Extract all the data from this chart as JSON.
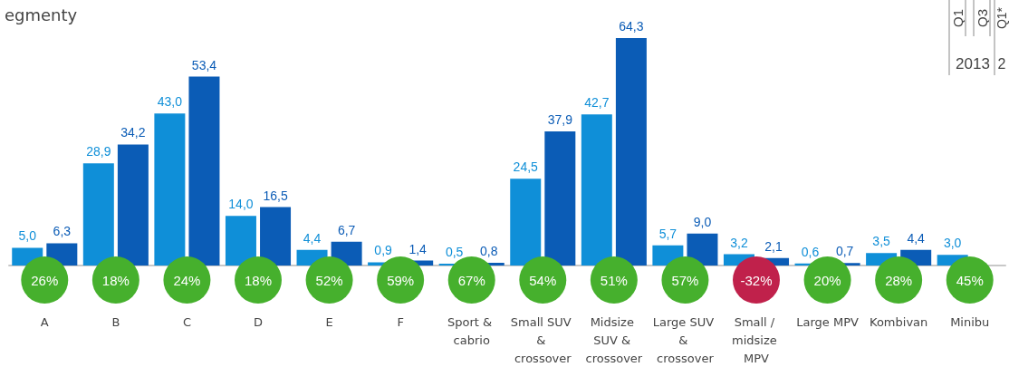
{
  "chart_data": {
    "type": "bar",
    "title": "egmenty",
    "categories": [
      "A",
      "B",
      "C",
      "D",
      "E",
      "F",
      "Sport & cabrio",
      "Small SUV & crossover",
      "Midsize SUV & crossover",
      "Large SUV & crossover",
      "Small / midsize MPV",
      "Large MPV",
      "Kombivan",
      "Minibu"
    ],
    "series": [
      {
        "color": "#0f8fd8",
        "values": [
          5.0,
          28.9,
          43.0,
          14.0,
          4.4,
          0.9,
          0.5,
          24.5,
          42.7,
          5.7,
          3.2,
          0.6,
          3.5,
          3.0
        ],
        "value_labels": [
          "5,0",
          "28,9",
          "43,0",
          "14,0",
          "4,4",
          "0,9",
          "0,5",
          "24,5",
          "42,7",
          "5,7",
          "3,2",
          "0,6",
          "3,5",
          "3,0"
        ]
      },
      {
        "color": "#0b5cb6",
        "values": [
          6.3,
          34.2,
          53.4,
          16.5,
          6.7,
          1.4,
          0.8,
          37.9,
          64.3,
          9.0,
          2.1,
          0.7,
          4.4,
          null
        ],
        "value_labels": [
          "6,3",
          "34,2",
          "53,4",
          "16,5",
          "6,7",
          "1,4",
          "0,8",
          "37,9",
          "64,3",
          "9,0",
          "2,1",
          "0,7",
          "4,4",
          null
        ]
      }
    ],
    "annotations": [
      "Q1",
      "Q3",
      "Q1*",
      "2013",
      "2",
      "26%",
      "18%",
      "24%",
      "18%",
      "52%",
      "59%",
      "67%",
      "54%",
      "51%",
      "57%",
      "-32%",
      "20%",
      "28%",
      "45%"
    ]
  }
}
